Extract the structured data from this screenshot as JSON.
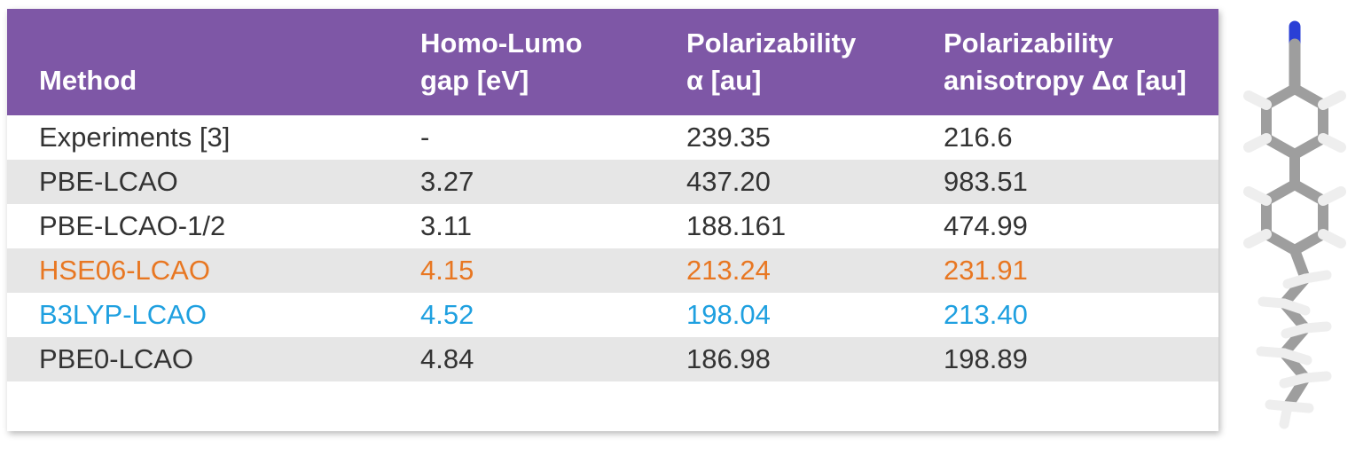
{
  "table": {
    "headers": [
      {
        "line1": "",
        "line2": "Method"
      },
      {
        "line1": "Homo-Lumo",
        "line2": "gap [eV]"
      },
      {
        "line1": "Polarizability",
        "line2": "α [au]"
      },
      {
        "line1": "Polarizability",
        "line2": "anisotropy Δα [au]"
      }
    ],
    "rows": [
      {
        "cells": [
          "Experiments [3]",
          "-",
          "239.35",
          "216.6"
        ],
        "color": "#333333",
        "shaded": false
      },
      {
        "cells": [
          "PBE-LCAO",
          "3.27",
          "437.20",
          "983.51"
        ],
        "color": "#333333",
        "shaded": true
      },
      {
        "cells": [
          "PBE-LCAO-1/2",
          "3.11",
          "188.161",
          "474.99"
        ],
        "color": "#333333",
        "shaded": false
      },
      {
        "cells": [
          "HSE06-LCAO",
          "4.15",
          "213.24",
          "231.91"
        ],
        "color": "#e87722",
        "shaded": true
      },
      {
        "cells": [
          "B3LYP-LCAO",
          "4.52",
          "198.04",
          "213.40"
        ],
        "color": "#1fa0e0",
        "shaded": false
      },
      {
        "cells": [
          "PBE0-LCAO",
          "4.84",
          "186.98",
          "198.89"
        ],
        "color": "#333333",
        "shaded": true
      }
    ]
  },
  "colors": {
    "header_bg": "#7e57a6",
    "header_text": "#ffffff",
    "row_shade": "#e6e6e6",
    "molecule_carbon": "#9e9e9e",
    "molecule_hydrogen": "#f2f2f2",
    "molecule_nitrogen": "#2a3fd6"
  },
  "icons": {
    "molecule": "molecule-stick-model-icon"
  }
}
